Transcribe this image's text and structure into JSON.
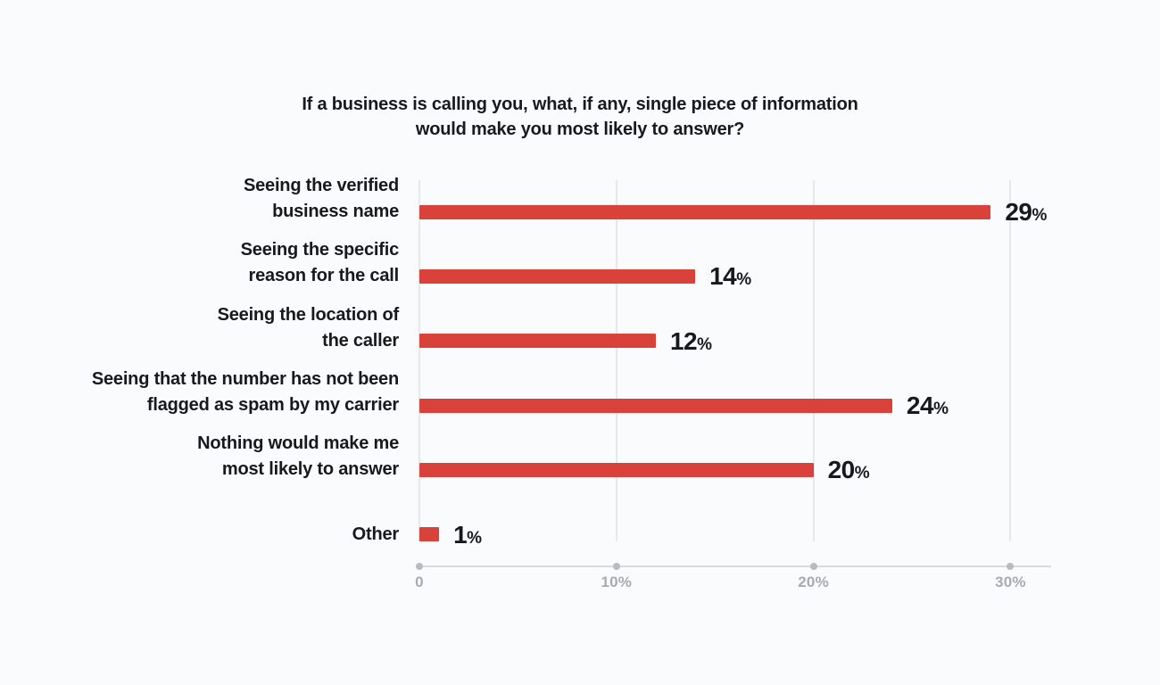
{
  "title": {
    "line1": "If a business is calling you, what, if any, single piece of information",
    "line2": "would make you most likely to answer?"
  },
  "chart_data": {
    "type": "bar",
    "orientation": "horizontal",
    "title": "If a business is calling you, what, if any, single piece of information would make you most likely to answer?",
    "categories": [
      "Seeing the verified business name",
      "Seeing the specific reason for the call",
      "Seeing the location of the caller",
      "Seeing that the number has not been flagged as spam by my carrier",
      "Nothing would make me most likely to answer",
      "Other"
    ],
    "category_lines": [
      [
        "Seeing the verified",
        "business name"
      ],
      [
        "Seeing the specific",
        "reason for the call"
      ],
      [
        "Seeing the location of",
        "the caller"
      ],
      [
        "Seeing that the number has not been",
        "flagged as spam by my carrier"
      ],
      [
        "Nothing would make me",
        "most likely to answer"
      ],
      [
        "Other"
      ]
    ],
    "values": [
      29,
      14,
      12,
      24,
      20,
      1
    ],
    "value_labels": [
      "29%",
      "14%",
      "12%",
      "24%",
      "20%",
      "1%"
    ],
    "value_suffix": "%",
    "xlabel": "",
    "ylabel": "",
    "xlim": [
      0,
      32
    ],
    "xticks": [
      0,
      10,
      20,
      30
    ],
    "xtick_labels": [
      "0",
      "10%",
      "20%",
      "30%"
    ],
    "grid": "vertical",
    "legend": "none",
    "colors": {
      "bar": "#d8423a",
      "background": "#fafbfc",
      "text": "#17191c",
      "tick_label": "#a7abaf",
      "gridline": "#e7e8ea",
      "axis_line": "#d9dbdd",
      "axis_dot": "#b9bcbf"
    }
  }
}
